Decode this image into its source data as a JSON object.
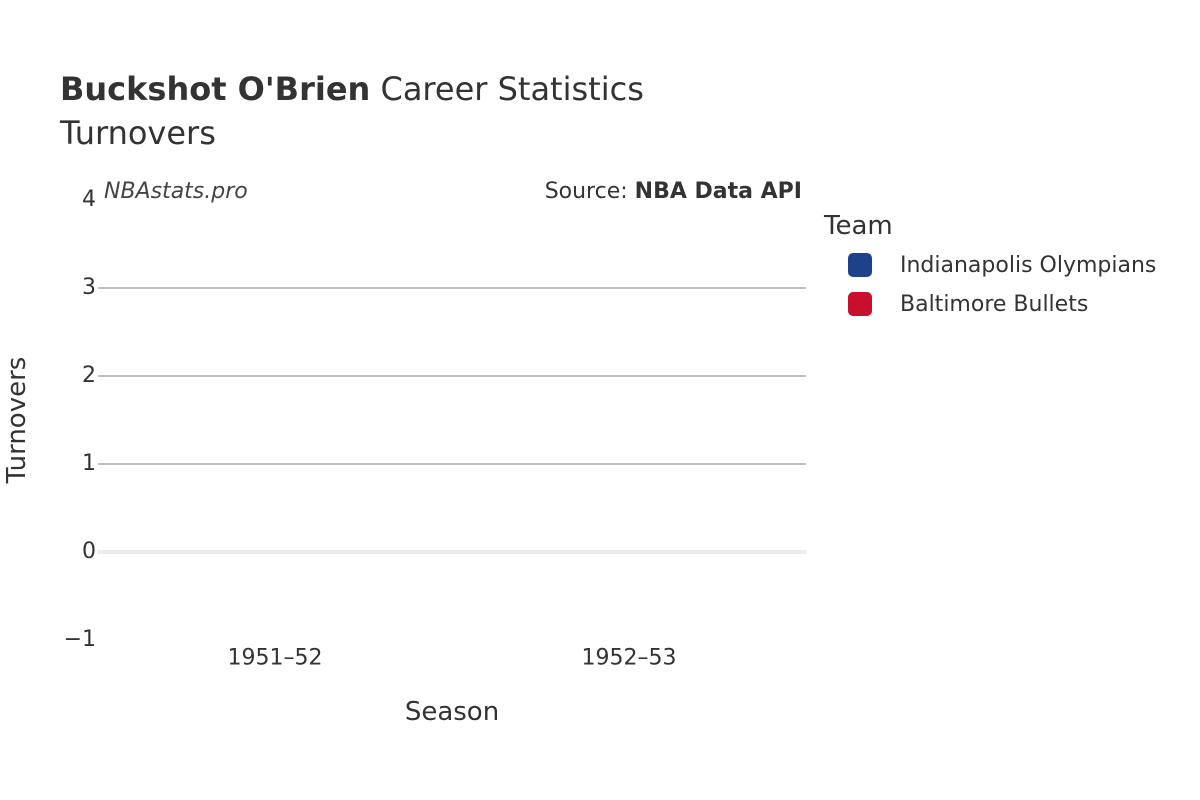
{
  "chart_data": {
    "type": "bar",
    "title_bold": "Buckshot O'Brien",
    "title_rest": " Career Statistics",
    "subtitle": "Turnovers",
    "watermark": "NBAstats.pro",
    "source_prefix": "Source: ",
    "source_name": "NBA Data API",
    "xlabel": "Season",
    "ylabel": "Turnovers",
    "categories": [
      "1951–52",
      "1952–53"
    ],
    "ylim": [
      -1,
      4
    ],
    "yticks": [
      {
        "value": 4,
        "label": "4"
      },
      {
        "value": 3,
        "label": "3"
      },
      {
        "value": 2,
        "label": "2"
      },
      {
        "value": 1,
        "label": "1"
      },
      {
        "value": 0,
        "label": "0"
      },
      {
        "value": -1,
        "label": "−1"
      }
    ],
    "grid": true,
    "legend_title": "Team",
    "legend_position": "right",
    "series": [
      {
        "name": "Indianapolis Olympians",
        "color": "#1d428a",
        "values": [
          null,
          null
        ]
      },
      {
        "name": "Baltimore Bullets",
        "color": "#c8102e",
        "values": [
          null,
          null
        ]
      }
    ]
  }
}
